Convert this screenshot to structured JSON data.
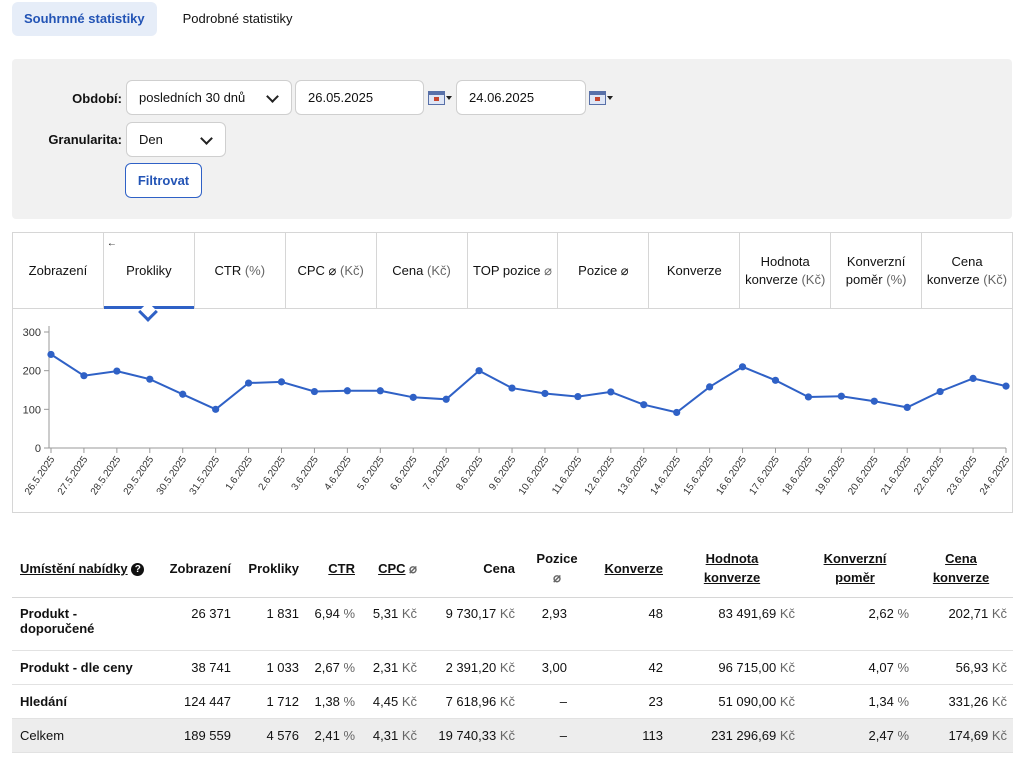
{
  "tabs": [
    {
      "label": "Souhrnné statistiky",
      "active": true
    },
    {
      "label": "Podrobné statistiky",
      "active": false
    }
  ],
  "filter": {
    "period_label": "Období:",
    "period_value": "posledních 30 dnů",
    "date_from": "26.05.2025",
    "date_to": "24.06.2025",
    "granularity_label": "Granularita:",
    "granularity_value": "Den",
    "filter_button": "Filtrovat"
  },
  "metrics": {
    "pin_glyph": "←",
    "items": [
      {
        "label": "Zobrazení",
        "unit": ""
      },
      {
        "label": "Prokliky",
        "unit": "",
        "selected": true
      },
      {
        "label": "CTR",
        "unit": "(%)"
      },
      {
        "label": "CPC ⌀",
        "unit": "(Kč)"
      },
      {
        "label": "Cena",
        "unit": "(Kč)"
      },
      {
        "label": "TOP pozice",
        "unit": "⌀"
      },
      {
        "label": "Pozice ⌀",
        "unit": ""
      },
      {
        "label": "Konverze",
        "unit": ""
      },
      {
        "label": "Hodnota konverze",
        "unit": "(Kč)"
      },
      {
        "label": "Konverzní poměr",
        "unit": "(%)"
      },
      {
        "label": "Cena konverze",
        "unit": "(Kč)"
      }
    ]
  },
  "chart_data": {
    "type": "line",
    "ylim": [
      0,
      300
    ],
    "yticks": [
      0,
      100,
      200,
      300
    ],
    "grid": false,
    "color": "#2f61c6",
    "x": [
      "26.5.2025",
      "27.5.2025",
      "28.5.2025",
      "29.5.2025",
      "30.5.2025",
      "31.5.2025",
      "1.6.2025",
      "2.6.2025",
      "3.6.2025",
      "4.6.2025",
      "5.6.2025",
      "6.6.2025",
      "7.6.2025",
      "8.6.2025",
      "9.6.2025",
      "10.6.2025",
      "11.6.2025",
      "12.6.2025",
      "13.6.2025",
      "14.6.2025",
      "15.6.2025",
      "16.6.2025",
      "17.6.2025",
      "18.6.2025",
      "19.6.2025",
      "20.6.2025",
      "21.6.2025",
      "22.6.2025",
      "23.6.2025",
      "24.6.2025"
    ],
    "values": [
      242,
      187,
      199,
      178,
      139,
      100,
      168,
      171,
      146,
      148,
      148,
      131,
      126,
      200,
      155,
      141,
      133,
      145,
      112,
      92,
      158,
      210,
      175,
      132,
      134,
      121,
      105,
      146,
      180,
      160
    ]
  },
  "table": {
    "headers": {
      "placement": "Umístění nabídky",
      "impressions": "Zobrazení",
      "clicks": "Prokliky",
      "ctr": "CTR",
      "cpc": "CPC",
      "cpc_sym": "⌀",
      "cost": "Cena",
      "position": "Pozice",
      "position_sym": "⌀",
      "conversions": "Konverze",
      "conv_value_1": "Hodnota",
      "conv_value_2": "konverze",
      "conv_rate_1": "Konverzní",
      "conv_rate_2": "poměr",
      "conv_cost_1": "Cena",
      "conv_cost_2": "konverze"
    },
    "help_glyph": "?",
    "units": {
      "pct": "%",
      "kc": "Kč"
    },
    "rows": [
      {
        "name_1": "Produkt -",
        "name_2": "doporučené",
        "impressions": "26 371",
        "clicks": "1 831",
        "ctr": "6,94",
        "cpc": "5,31",
        "cost": "9 730,17",
        "position": "2,93",
        "conversions": "48",
        "conv_value": "83 491,69",
        "conv_rate": "2,62",
        "conv_cost": "202,71"
      },
      {
        "name_1": "Produkt - dle ceny",
        "name_2": "",
        "impressions": "38 741",
        "clicks": "1 033",
        "ctr": "2,67",
        "cpc": "2,31",
        "cost": "2 391,20",
        "position": "3,00",
        "conversions": "42",
        "conv_value": "96 715,00",
        "conv_rate": "4,07",
        "conv_cost": "56,93"
      },
      {
        "name_1": "Hledání",
        "name_2": "",
        "impressions": "124 447",
        "clicks": "1 712",
        "ctr": "1,38",
        "cpc": "4,45",
        "cost": "7 618,96",
        "position": "–",
        "conversions": "23",
        "conv_value": "51 090,00",
        "conv_rate": "1,34",
        "conv_cost": "331,26"
      }
    ],
    "total": {
      "name_1": "Celkem",
      "impressions": "189 559",
      "clicks": "4 576",
      "ctr": "2,41",
      "cpc": "4,31",
      "cost": "19 740,33",
      "position": "–",
      "conversions": "113",
      "conv_value": "231 296,69",
      "conv_rate": "2,47",
      "conv_cost": "174,69"
    }
  }
}
